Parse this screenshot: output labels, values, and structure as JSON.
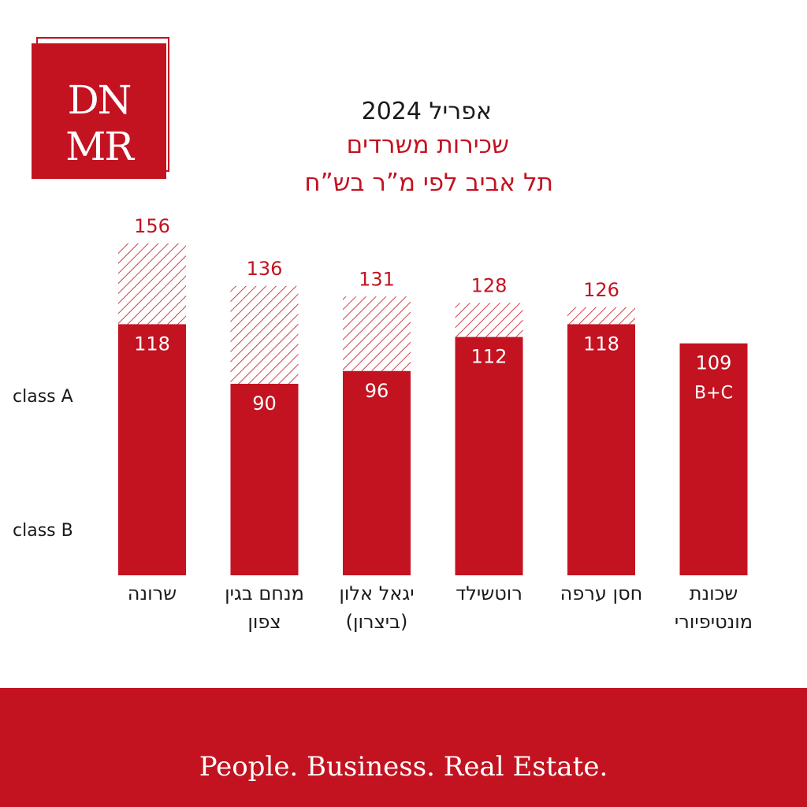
{
  "logo": {
    "line1": "DN",
    "line2": "MR"
  },
  "header": {
    "title": "אפריל 2024",
    "subtitle_1": "שכירות משרדים",
    "subtitle_2": "תל אביב לפי מ”ר בש”ח"
  },
  "class_labels": {
    "a": "class A",
    "b": "class B"
  },
  "colors": {
    "brand_red": "#c31321",
    "text_dark": "#1a1a1a"
  },
  "chart_data": {
    "type": "bar",
    "stacked": true,
    "categories": [
      [
        "שרונה"
      ],
      [
        "מנחם בגין",
        "צפון"
      ],
      [
        "יגאל אלון",
        "(ביצרון)"
      ],
      [
        "רוטשילד"
      ],
      [
        "חסן ערפה"
      ],
      [
        "שכונת",
        "מונטיפיורי"
      ]
    ],
    "series": [
      {
        "name": "class B",
        "style": "solid",
        "values": [
          118,
          90,
          96,
          112,
          118,
          109
        ]
      },
      {
        "name": "class A",
        "style": "hatched",
        "values": [
          156,
          136,
          131,
          128,
          126,
          null
        ]
      }
    ],
    "bar_annotations": [
      "",
      "",
      "",
      "",
      "",
      "B+C"
    ]
  },
  "footer": {
    "tagline": "People. Business. Real Estate."
  }
}
